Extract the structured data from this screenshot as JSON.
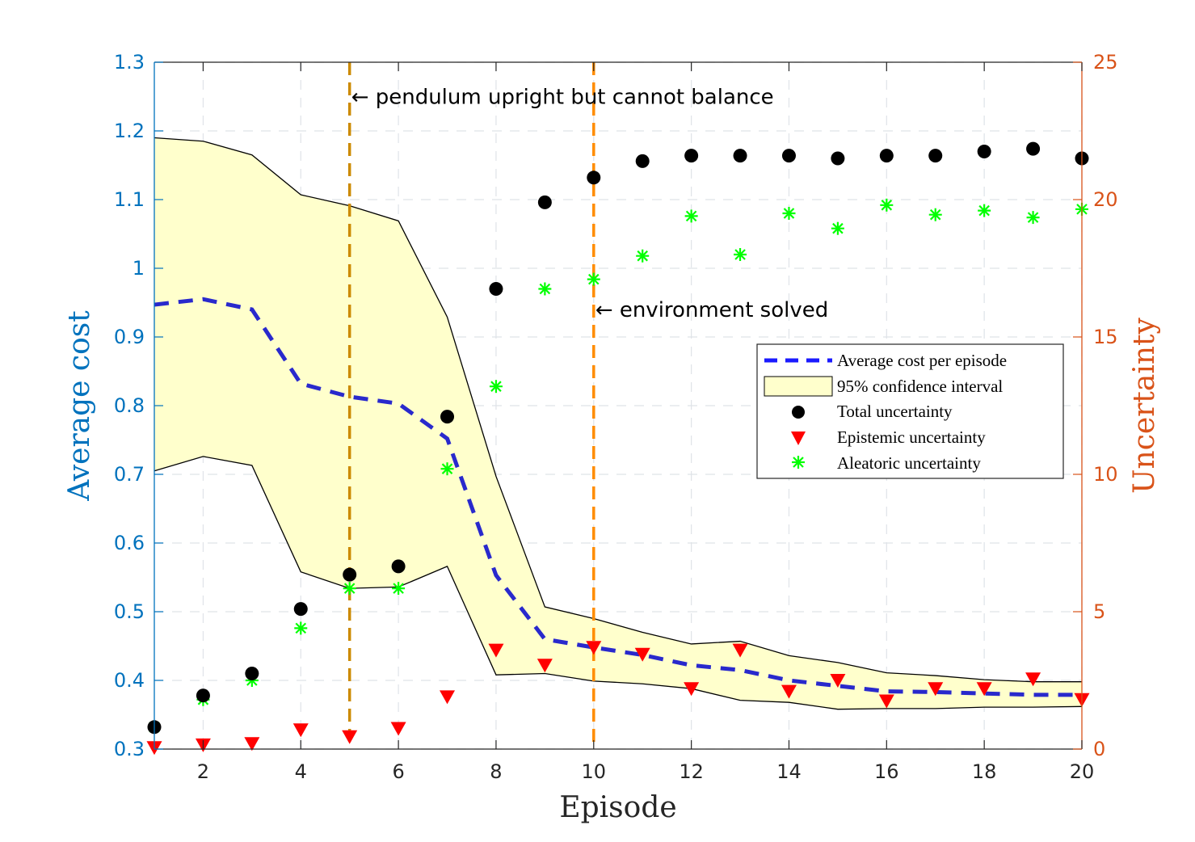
{
  "chart_data": {
    "type": "line",
    "xlabel": "Episode",
    "ylabel_left": "Average cost",
    "ylabel_right": "Uncertainty",
    "xlim": [
      1,
      20
    ],
    "ylim_left": [
      0.3,
      1.3
    ],
    "ylim_right": [
      0,
      25
    ],
    "x_ticks": [
      "2",
      "4",
      "6",
      "8",
      "10",
      "12",
      "14",
      "16",
      "18",
      "20"
    ],
    "y_left_ticks": [
      "0.3",
      "0.4",
      "0.5",
      "0.6",
      "0.7",
      "0.8",
      "0.9",
      "1",
      "1.1",
      "1.2",
      "1.3"
    ],
    "y_right_ticks": [
      "0",
      "5",
      "10",
      "15",
      "20",
      "25"
    ],
    "grid": true,
    "legend_position": "center-right",
    "colors": {
      "left_axis": "#0072BD",
      "right_axis": "#D95319",
      "mean_line": "#2929CC",
      "ci_fill": "#FFFFCC",
      "total": "#000000",
      "epistemic": "#FF0000",
      "aleatoric": "#00FF00",
      "vline_first": "#CC8A00",
      "vline_second": "#FF8C00"
    },
    "x": [
      1,
      2,
      3,
      4,
      5,
      6,
      7,
      8,
      9,
      10,
      11,
      12,
      13,
      14,
      15,
      16,
      17,
      18,
      19,
      20
    ],
    "series": [
      {
        "name": "Average cost per episode",
        "axis": "left",
        "values": [
          0.947,
          0.955,
          0.94,
          0.832,
          0.813,
          0.803,
          0.752,
          0.553,
          0.46,
          0.448,
          0.437,
          0.422,
          0.415,
          0.4,
          0.392,
          0.384,
          0.383,
          0.381,
          0.379,
          0.379
        ]
      },
      {
        "name": "95% confidence interval",
        "axis": "left",
        "lower": [
          0.705,
          0.726,
          0.713,
          0.558,
          0.534,
          0.536,
          0.566,
          0.408,
          0.41,
          0.399,
          0.395,
          0.388,
          0.371,
          0.368,
          0.358,
          0.359,
          0.359,
          0.361,
          0.361,
          0.362
        ],
        "upper": [
          1.19,
          1.185,
          1.165,
          1.107,
          1.091,
          1.069,
          0.929,
          0.697,
          0.507,
          0.49,
          0.47,
          0.453,
          0.457,
          0.436,
          0.426,
          0.411,
          0.407,
          0.401,
          0.398,
          0.398
        ]
      },
      {
        "name": "Total uncertainty",
        "axis": "right",
        "values": [
          0.8,
          1.95,
          2.75,
          5.1,
          6.35,
          6.65,
          12.1,
          16.75,
          19.9,
          20.8,
          21.4,
          21.6,
          21.6,
          21.6,
          21.5,
          21.6,
          21.6,
          21.75,
          21.85,
          21.5
        ]
      },
      {
        "name": "Epistemic uncertainty",
        "axis": "right",
        "values": [
          0.05,
          0.15,
          0.2,
          0.7,
          0.45,
          0.75,
          1.9,
          3.6,
          3.05,
          3.7,
          3.45,
          2.2,
          3.6,
          2.1,
          2.5,
          1.75,
          2.2,
          2.2,
          2.55,
          1.8
        ]
      },
      {
        "name": "Aleatoric uncertainty",
        "axis": "right",
        "values": [
          0.8,
          1.8,
          2.5,
          4.4,
          5.85,
          5.85,
          10.2,
          13.2,
          16.75,
          17.1,
          17.95,
          19.4,
          18.0,
          19.5,
          18.95,
          19.8,
          19.45,
          19.6,
          19.35,
          19.65
        ]
      }
    ],
    "vertical_lines": [
      5,
      10
    ],
    "annotations": [
      {
        "x": 5,
        "y": 1.25,
        "text": "← pendulum upright but cannot balance"
      },
      {
        "x": 10,
        "y": 0.94,
        "text": "← environment solved"
      }
    ]
  }
}
